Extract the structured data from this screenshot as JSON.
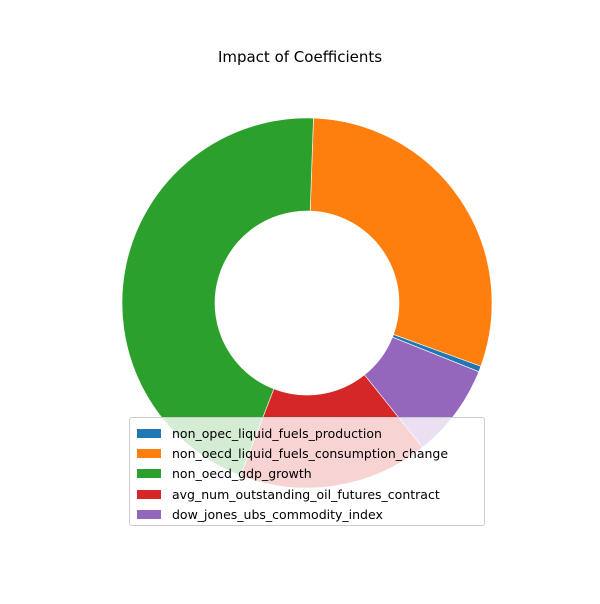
{
  "chart_data": {
    "type": "pie",
    "title": "Impact of Coefficients",
    "donut": true,
    "legend_position": "lower center",
    "series": [
      {
        "name": "non_opec_liquid_fuels_production",
        "value": 0.5,
        "color": "#1f77b4"
      },
      {
        "name": "non_oecd_liquid_fuels_consumption_change",
        "value": 30.0,
        "color": "#ff7f0e"
      },
      {
        "name": "non_oecd_gdp_growth",
        "value": 44.7,
        "color": "#2ca02c"
      },
      {
        "name": "avg_num_outstanding_oil_futures_contract",
        "value": 16.6,
        "color": "#d62728"
      },
      {
        "name": "dow_jones_ubs_commodity_index",
        "value": 8.2,
        "color": "#9467bd"
      }
    ]
  }
}
